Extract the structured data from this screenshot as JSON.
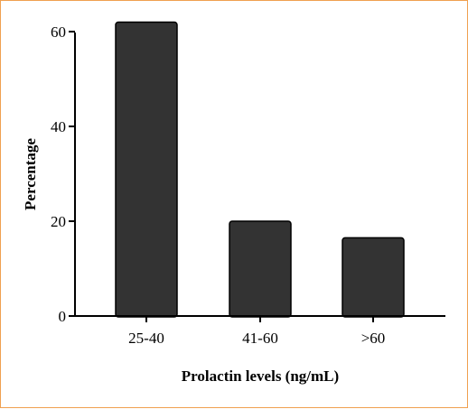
{
  "colors": {
    "frame_border": "#f0a050",
    "bar_fill": "#333333",
    "axis": "#000000"
  },
  "chart_data": {
    "type": "bar",
    "categories": [
      "25-40",
      "41-60",
      ">60"
    ],
    "values": [
      62,
      20,
      16.5
    ],
    "xlabel": "Prolactin levels (ng/mL)",
    "ylabel": "Percentage",
    "ylim": [
      0,
      60
    ],
    "yticks": [
      "0",
      "20",
      "40",
      "60"
    ],
    "grid": false,
    "legend": "none"
  }
}
